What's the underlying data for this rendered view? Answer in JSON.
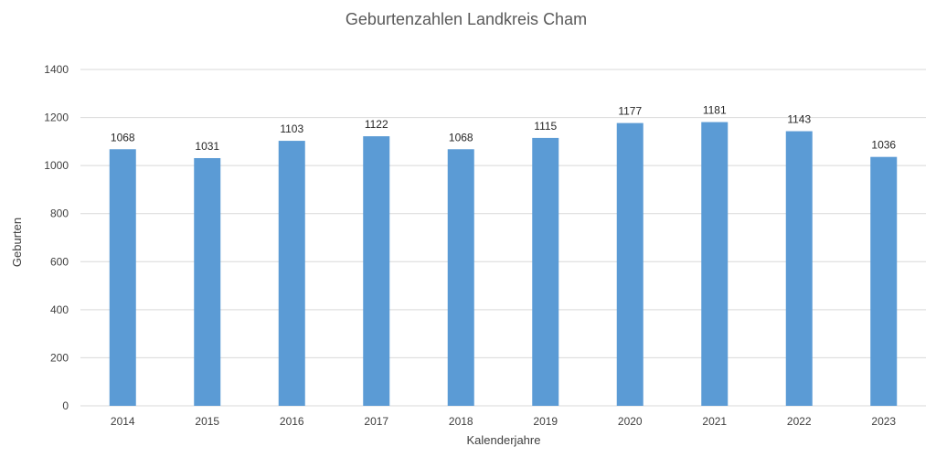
{
  "chart_data": {
    "type": "bar",
    "title": "Geburtenzahlen Landkreis Cham",
    "xlabel": "Kalenderjahre",
    "ylabel": "Geburten",
    "categories": [
      "2014",
      "2015",
      "2016",
      "2017",
      "2018",
      "2019",
      "2020",
      "2021",
      "2022",
      "2023"
    ],
    "series": [
      {
        "values": [
          1068,
          1031,
          1103,
          1122,
          1068,
          1115,
          1177,
          1181,
          1143,
          1036
        ]
      }
    ],
    "ylim": [
      0,
      1400
    ],
    "yticks": [
      0,
      200,
      400,
      600,
      800,
      1000,
      1200,
      1400
    ],
    "grid": true,
    "legend": "none",
    "bar_color": "#5b9bd5"
  }
}
